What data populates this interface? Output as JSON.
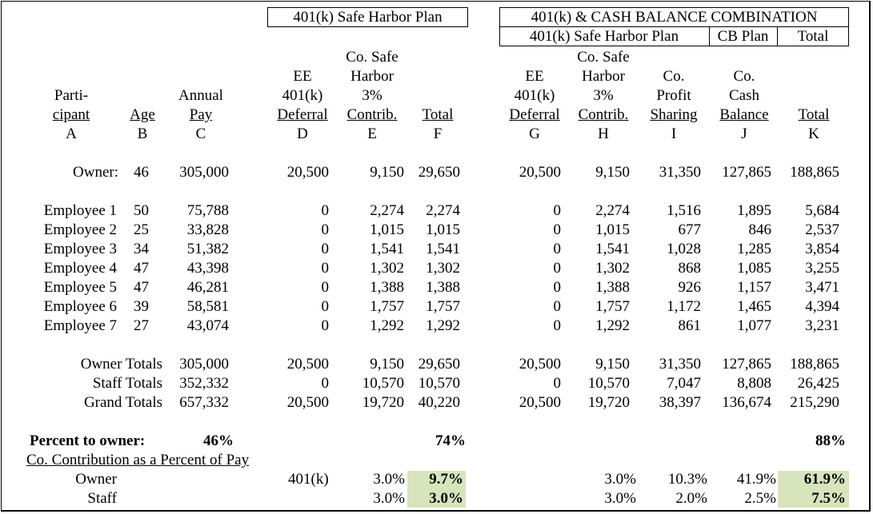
{
  "plan_headers": {
    "left_box": "401(k) Safe Harbor Plan",
    "right_box": "401(k) & CASH BALANCE COMBINATION",
    "right_sub": [
      "401(k) Safe Harbor Plan",
      "CB Plan",
      "Total"
    ]
  },
  "columns": [
    {
      "lines": [
        "",
        "",
        "Parti-",
        "cipant"
      ],
      "letter": "A"
    },
    {
      "lines": [
        "",
        "",
        "",
        "Age"
      ],
      "letter": "B"
    },
    {
      "lines": [
        "",
        "",
        "Annual",
        "Pay"
      ],
      "letter": "C"
    },
    {
      "lines": [
        "",
        "EE",
        "401(k)",
        "Deferral"
      ],
      "letter": "D"
    },
    {
      "lines": [
        "Co. Safe",
        "Harbor",
        "3%",
        "Contrib."
      ],
      "letter": "E"
    },
    {
      "lines": [
        "",
        "",
        "",
        "Total"
      ],
      "letter": "F"
    },
    {
      "lines": [
        "",
        "EE",
        "401(k)",
        "Deferral"
      ],
      "letter": "G"
    },
    {
      "lines": [
        "Co. Safe",
        "Harbor",
        "3%",
        "Contrib."
      ],
      "letter": "H"
    },
    {
      "lines": [
        "",
        "Co.",
        "Profit",
        "Sharing"
      ],
      "letter": "I"
    },
    {
      "lines": [
        "",
        "Co.",
        "Cash",
        "Balance"
      ],
      "letter": "J"
    },
    {
      "lines": [
        "",
        "",
        "",
        "Total"
      ],
      "letter": "K"
    }
  ],
  "owner_row": {
    "label": "Owner:",
    "cells": [
      "46",
      "305,000",
      "20,500",
      "9,150",
      "29,650",
      "20,500",
      "9,150",
      "31,350",
      "127,865",
      "188,865"
    ]
  },
  "employees": [
    {
      "label": "Employee 1",
      "cells": [
        "50",
        "75,788",
        "0",
        "2,274",
        "2,274",
        "0",
        "2,274",
        "1,516",
        "1,895",
        "5,684"
      ]
    },
    {
      "label": "Employee 2",
      "cells": [
        "25",
        "33,828",
        "0",
        "1,015",
        "1,015",
        "0",
        "1,015",
        "677",
        "846",
        "2,537"
      ]
    },
    {
      "label": "Employee 3",
      "cells": [
        "34",
        "51,382",
        "0",
        "1,541",
        "1,541",
        "0",
        "1,541",
        "1,028",
        "1,285",
        "3,854"
      ]
    },
    {
      "label": "Employee 4",
      "cells": [
        "47",
        "43,398",
        "0",
        "1,302",
        "1,302",
        "0",
        "1,302",
        "868",
        "1,085",
        "3,255"
      ]
    },
    {
      "label": "Employee 5",
      "cells": [
        "47",
        "46,281",
        "0",
        "1,388",
        "1,388",
        "0",
        "1,388",
        "926",
        "1,157",
        "3,471"
      ]
    },
    {
      "label": "Employee 6",
      "cells": [
        "39",
        "58,581",
        "0",
        "1,757",
        "1,757",
        "0",
        "1,757",
        "1,172",
        "1,465",
        "4,394"
      ]
    },
    {
      "label": "Employee 7",
      "cells": [
        "27",
        "43,074",
        "0",
        "1,292",
        "1,292",
        "0",
        "1,292",
        "861",
        "1,077",
        "3,231"
      ]
    }
  ],
  "totals": [
    {
      "label": "Owner Totals",
      "cells": [
        "",
        "305,000",
        "20,500",
        "9,150",
        "29,650",
        "20,500",
        "9,150",
        "31,350",
        "127,865",
        "188,865"
      ]
    },
    {
      "label": "Staff Totals",
      "cells": [
        "",
        "352,332",
        "0",
        "10,570",
        "10,570",
        "0",
        "10,570",
        "7,047",
        "8,808",
        "26,425"
      ]
    },
    {
      "label": "Grand Totals",
      "cells": [
        "",
        "657,332",
        "20,500",
        "19,720",
        "40,220",
        "20,500",
        "19,720",
        "38,397",
        "136,674",
        "215,290"
      ]
    }
  ],
  "percent_to_owner": {
    "label": "Percent to owner:",
    "pay": "46%",
    "safe_harbor_total": "74%",
    "combo_total": "88%"
  },
  "contribution_pct": {
    "title": "Co. Contribution as a Percent of Pay",
    "owner": {
      "label": "Owner",
      "plan": "401(k)",
      "e": "3.0%",
      "f": "9.7%",
      "h": "3.0%",
      "i": "10.3%",
      "j": "41.9%",
      "k": "61.9%"
    },
    "staff": {
      "label": "Staff",
      "e": "3.0%",
      "f": "3.0%",
      "h": "3.0%",
      "i": "2.0%",
      "j": "2.5%",
      "k": "7.5%"
    }
  },
  "colors": {
    "highlight": "#d8e4bc"
  }
}
